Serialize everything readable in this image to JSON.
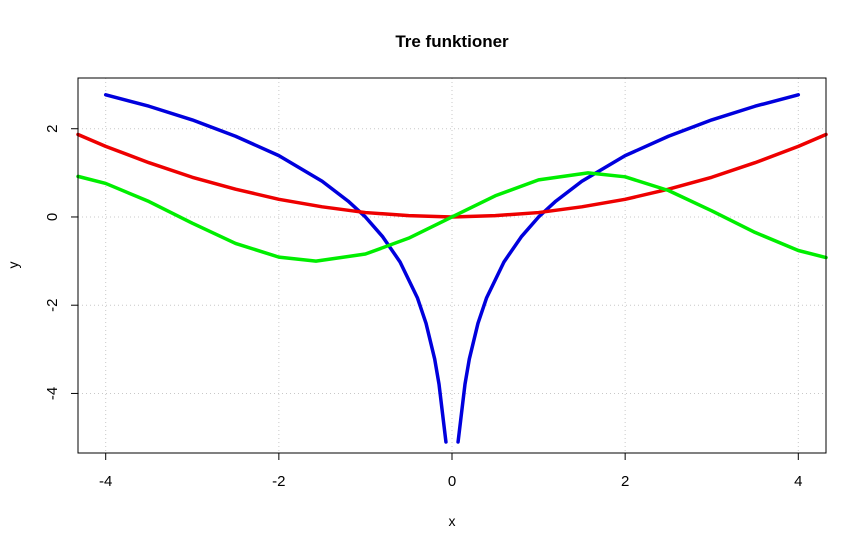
{
  "chart_data": {
    "type": "line",
    "title": "Tre funktioner",
    "xlabel": "x",
    "ylabel": "y",
    "xlim": [
      -4.32,
      4.32
    ],
    "ylim": [
      -5.35,
      3.15
    ],
    "x_ticks": [
      -4,
      -2,
      0,
      2,
      4
    ],
    "y_ticks": [
      -4,
      -2,
      0,
      2
    ],
    "x_tick_labels": [
      "-4",
      "-2",
      "0",
      "2",
      "4"
    ],
    "y_tick_labels": [
      "-4",
      "-2",
      "0",
      "2"
    ],
    "grid": true,
    "legend": "none",
    "series": [
      {
        "color": "#0000dd",
        "x": [
          -4,
          -3.5,
          -3,
          -2.5,
          -2,
          -1.5,
          -1.2,
          -1,
          -0.8,
          -0.6,
          -0.4,
          -0.3,
          -0.2,
          -0.15,
          -0.1,
          -0.07,
          null,
          0.07,
          0.1,
          0.15,
          0.2,
          0.3,
          0.4,
          0.6,
          0.8,
          1,
          1.2,
          1.5,
          2,
          2.5,
          3,
          3.5,
          4
        ],
        "y": [
          2.77,
          2.51,
          2.2,
          1.83,
          1.39,
          0.81,
          0.36,
          0,
          -0.45,
          -1.02,
          -1.83,
          -2.41,
          -3.22,
          -3.79,
          -4.61,
          -5.1,
          null,
          -5.1,
          -4.61,
          -3.79,
          -3.22,
          -2.41,
          -1.83,
          -1.02,
          -0.45,
          0,
          0.36,
          0.81,
          1.39,
          1.83,
          2.2,
          2.51,
          2.77
        ]
      },
      {
        "color": "#ee0000",
        "x": [
          -4.32,
          -4,
          -3.5,
          -3,
          -2.5,
          -2,
          -1.5,
          -1,
          -0.5,
          0,
          0.5,
          1,
          1.5,
          2,
          2.5,
          3,
          3.5,
          4,
          4.32
        ],
        "y": [
          1.87,
          1.6,
          1.23,
          0.9,
          0.63,
          0.4,
          0.23,
          0.1,
          0.03,
          0,
          0.03,
          0.1,
          0.23,
          0.4,
          0.63,
          0.9,
          1.23,
          1.6,
          1.87
        ]
      },
      {
        "color": "#00ee00",
        "x": [
          -4.32,
          -4,
          -3.5,
          -3,
          -2.5,
          -2,
          -1.571,
          -1,
          -0.5,
          0,
          0.5,
          1,
          1.571,
          2,
          2.5,
          3,
          3.5,
          4,
          4.32
        ],
        "y": [
          0.92,
          0.76,
          0.35,
          -0.14,
          -0.6,
          -0.91,
          -1,
          -0.84,
          -0.48,
          0,
          0.48,
          0.84,
          1,
          0.91,
          0.6,
          0.14,
          -0.35,
          -0.76,
          -0.92
        ]
      }
    ]
  }
}
